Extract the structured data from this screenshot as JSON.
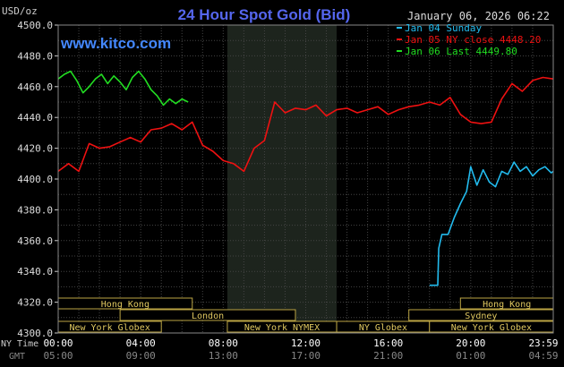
{
  "chart_data": {
    "type": "line",
    "title": "24 Hour Spot Gold (Bid)",
    "timestamp": "January 06, 2026 06:22",
    "brand": "www.kitco.com",
    "unit_label": "USD/oz",
    "ylim": [
      4300,
      4500
    ],
    "y_ticks": [
      "4500.0",
      "4480.0",
      "4460.0",
      "4440.0",
      "4420.0",
      "4400.0",
      "4380.0",
      "4360.0",
      "4340.0",
      "4320.0",
      "4300.0"
    ],
    "x_row_label_ny": "NY Time",
    "x_row_label_gmt": "GMT",
    "x_ticks_ny": [
      "00:00",
      "04:00",
      "08:00",
      "12:00",
      "16:00",
      "20:00",
      "23:59"
    ],
    "x_ticks_gmt": [
      "05:00",
      "09:00",
      "13:00",
      "17:00",
      "21:00",
      "01:00",
      "04:59"
    ],
    "x_tick_hours": [
      0,
      4,
      8,
      12,
      16,
      20,
      24
    ],
    "shaded_hours": [
      8.2,
      13.5
    ],
    "legend_placement": "top-right",
    "series": [
      {
        "name": "Jan 04 Sunday",
        "color": "#22bbee",
        "x": [
          18.0,
          18.4,
          18.45,
          18.6,
          18.9,
          19.2,
          19.5,
          19.8,
          20.0,
          20.3,
          20.6,
          20.9,
          21.2,
          21.5,
          21.8,
          22.1,
          22.4,
          22.7,
          23.0,
          23.3,
          23.6,
          23.9,
          24.0
        ],
        "y": [
          4331,
          4331,
          4355,
          4364,
          4364,
          4375,
          4384,
          4392,
          4408,
          4396,
          4406,
          4398,
          4395,
          4405,
          4403,
          4411,
          4405,
          4408,
          4402,
          4406,
          4408,
          4404,
          4405
        ]
      },
      {
        "name": "Jan 05 NY close 4448.20",
        "color": "#ee1111",
        "x": [
          0.0,
          0.5,
          1.0,
          1.5,
          2.0,
          2.5,
          3.0,
          3.5,
          4.0,
          4.5,
          5.0,
          5.5,
          6.0,
          6.5,
          7.0,
          7.5,
          8.0,
          8.5,
          9.0,
          9.5,
          10.0,
          10.5,
          11.0,
          11.5,
          12.0,
          12.5,
          13.0,
          13.5,
          14.0,
          14.5,
          15.0,
          15.5,
          16.0,
          16.5,
          17.0,
          17.5,
          18.0,
          18.5,
          19.0,
          19.5,
          20.0,
          20.5,
          21.0,
          21.5,
          22.0,
          22.5,
          23.0,
          23.5,
          24.0
        ],
        "y": [
          4405,
          4410,
          4405,
          4423,
          4420,
          4421,
          4424,
          4427,
          4424,
          4432,
          4433,
          4436,
          4432,
          4437,
          4422,
          4418,
          4412,
          4410,
          4405,
          4420,
          4425,
          4450,
          4443,
          4446,
          4445,
          4448,
          4441,
          4445,
          4446,
          4443,
          4445,
          4447,
          4442,
          4445,
          4447,
          4448,
          4450,
          4448,
          4453,
          4442,
          4437,
          4436,
          4437,
          4452,
          4462,
          4457,
          4464,
          4466,
          4465
        ]
      },
      {
        "name": "Jan 06 Last 4449.80",
        "color": "#22dd22",
        "x": [
          0.0,
          0.3,
          0.6,
          0.9,
          1.2,
          1.5,
          1.8,
          2.1,
          2.4,
          2.7,
          3.0,
          3.3,
          3.6,
          3.9,
          4.2,
          4.5,
          4.8,
          5.1,
          5.4,
          5.7,
          6.0,
          6.3
        ],
        "y": [
          4465,
          4468,
          4470,
          4464,
          4456,
          4460,
          4465,
          4468,
          4462,
          4467,
          4463,
          4458,
          4466,
          4470,
          4465,
          4458,
          4454,
          4448,
          4452,
          4449,
          4452,
          4450
        ]
      }
    ],
    "sessions": [
      {
        "label": "Hong Kong",
        "start": 0,
        "end": 6.5,
        "row": 0
      },
      {
        "label": "Hong Kong",
        "start": 19.5,
        "end": 24,
        "row": 0
      },
      {
        "label": "London",
        "start": 3,
        "end": 11.5,
        "row": 1
      },
      {
        "label": "Sydney",
        "start": 17,
        "end": 24,
        "row": 1
      },
      {
        "label": "New York Globex",
        "start": 0,
        "end": 5,
        "row": 2
      },
      {
        "label": "New York NYMEX",
        "start": 8.2,
        "end": 13.5,
        "row": 2
      },
      {
        "label": "NY Globex",
        "start": 13.5,
        "end": 18,
        "row": 2
      },
      {
        "label": "New York Globex",
        "start": 18,
        "end": 24,
        "row": 2
      }
    ]
  }
}
